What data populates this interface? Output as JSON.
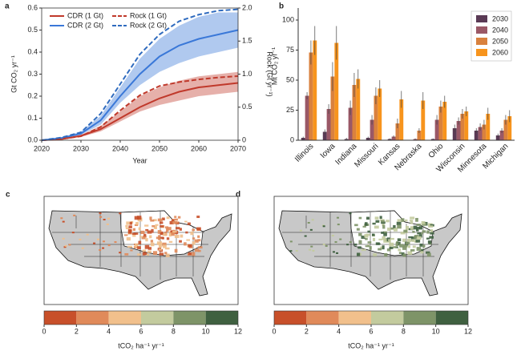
{
  "chart_data": [
    {
      "type": "line",
      "panel_label": "a",
      "xlabel": "Year",
      "ylabel": "Gt CO₂ yr⁻¹",
      "y2label": "Rock (Gt yr⁻¹)",
      "x": [
        2020,
        2025,
        2030,
        2035,
        2040,
        2045,
        2050,
        2055,
        2060,
        2065,
        2070
      ],
      "xlim": [
        2020,
        2070
      ],
      "xticks": [
        2020,
        2030,
        2040,
        2050,
        2060,
        2070
      ],
      "ylim": [
        0,
        0.6
      ],
      "yticks": [
        {
          "value": 0,
          "label": "0.0"
        },
        0.1,
        0.2,
        0.3,
        0.4,
        0.5,
        0.6
      ],
      "y2lim": [
        0,
        2
      ],
      "y2ticks": [
        0,
        0.5,
        {
          "value": 1,
          "label": "1.0"
        },
        1.5,
        {
          "value": 2,
          "label": "2.0"
        }
      ],
      "series": [
        {
          "name": "CDR (1 Gt)",
          "color": "#c0392b",
          "dash": false,
          "values": [
            0,
            0.005,
            0.02,
            0.05,
            0.1,
            0.15,
            0.19,
            0.22,
            0.24,
            0.25,
            0.26
          ],
          "lower": [
            0,
            0.004,
            0.015,
            0.04,
            0.085,
            0.13,
            0.16,
            0.18,
            0.2,
            0.21,
            0.22
          ],
          "upper": [
            0,
            0.006,
            0.025,
            0.065,
            0.13,
            0.2,
            0.24,
            0.27,
            0.29,
            0.3,
            0.31
          ]
        },
        {
          "name": "CDR (2 Gt)",
          "color": "#3a78d8",
          "dash": false,
          "values": [
            0,
            0.01,
            0.03,
            0.09,
            0.2,
            0.3,
            0.38,
            0.43,
            0.46,
            0.48,
            0.5
          ],
          "lower": [
            0,
            0.008,
            0.025,
            0.07,
            0.17,
            0.25,
            0.31,
            0.35,
            0.38,
            0.4,
            0.42
          ],
          "upper": [
            0,
            0.012,
            0.04,
            0.11,
            0.24,
            0.37,
            0.46,
            0.52,
            0.56,
            0.58,
            0.58
          ]
        },
        {
          "name": "Rock (1 Gt)",
          "color": "#c0392b",
          "dash": true,
          "axis": "y2",
          "values": [
            0,
            0.02,
            0.06,
            0.2,
            0.45,
            0.68,
            0.82,
            0.88,
            0.92,
            0.95,
            0.97
          ]
        },
        {
          "name": "Rock (2 Gt)",
          "color": "#2f6bbf",
          "dash": true,
          "axis": "y2",
          "values": [
            0,
            0.04,
            0.12,
            0.4,
            0.85,
            1.3,
            1.6,
            1.8,
            1.9,
            1.96,
            1.98
          ]
        }
      ]
    },
    {
      "type": "bar",
      "panel_label": "b",
      "ylabel": "Mt CO₂ yr⁻¹",
      "categories": [
        "Illinois",
        "Iowa",
        "Indiana",
        "Missouri",
        "Kansas",
        "Nebraska",
        "Ohio",
        "Wisconsin",
        "Minnesota",
        "Michigan"
      ],
      "ylim": [
        0,
        110
      ],
      "yticks": [
        0,
        25,
        50,
        75,
        100
      ],
      "series": [
        {
          "name": "2030",
          "color": "#5a3a55",
          "values": [
            2,
            7,
            1,
            2,
            1,
            0,
            1,
            10,
            8,
            4
          ],
          "errors": [
            1,
            2,
            1,
            1,
            0.5,
            0.3,
            0.5,
            3,
            2,
            1.5
          ]
        },
        {
          "name": "2040",
          "color": "#9a5866",
          "values": [
            37,
            26,
            27,
            17,
            3,
            1,
            17,
            16,
            11,
            8
          ],
          "errors": [
            3,
            4,
            6,
            4,
            1,
            0.5,
            4,
            3,
            3,
            2
          ]
        },
        {
          "name": "2050",
          "color": "#d9813e",
          "values": [
            73,
            53,
            46,
            37,
            14,
            8,
            28,
            22,
            13,
            17
          ],
          "errors": [
            10,
            12,
            10,
            7,
            4,
            2,
            5,
            4,
            4,
            4
          ]
        },
        {
          "name": "2060",
          "color": "#f7941d",
          "values": [
            83,
            81,
            51,
            43,
            34,
            33,
            32,
            24,
            22,
            20
          ],
          "errors": [
            12,
            14,
            8,
            7,
            7,
            7,
            5,
            4,
            5,
            5
          ]
        }
      ]
    },
    {
      "type": "map",
      "panel_label": "c",
      "colorbar_label": "tCO₂ ha⁻¹ yr⁻¹",
      "colorbar_lim": [
        0,
        12
      ],
      "colorbar_ticks": [
        0,
        2,
        4,
        6,
        8,
        10,
        12
      ],
      "colorbar_colors": [
        "#c8502a",
        "#e08a5a",
        "#f1c08c",
        "#c3cb9e",
        "#7e9468",
        "#3f6040"
      ]
    },
    {
      "type": "map",
      "panel_label": "d",
      "colorbar_label": "tCO₂ ha⁻¹ yr⁻¹",
      "colorbar_lim": [
        0,
        12
      ],
      "colorbar_ticks": [
        0,
        2,
        4,
        6,
        8,
        10,
        12
      ],
      "colorbar_colors": [
        "#c8502a",
        "#e08a5a",
        "#f1c08c",
        "#c3cb9e",
        "#7e9468",
        "#3f6040"
      ]
    }
  ]
}
